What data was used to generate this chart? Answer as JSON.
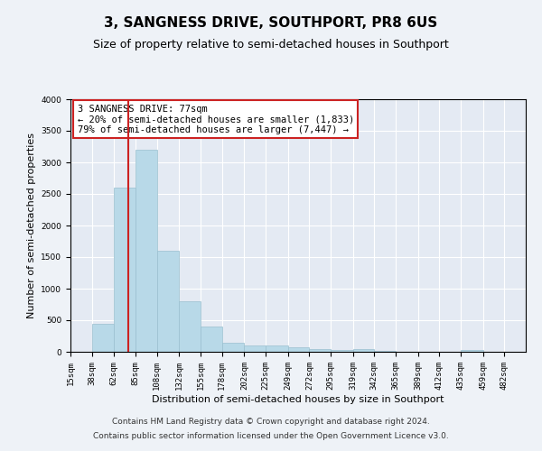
{
  "title": "3, SANGNESS DRIVE, SOUTHPORT, PR8 6US",
  "subtitle": "Size of property relative to semi-detached houses in Southport",
  "xlabel": "Distribution of semi-detached houses by size in Southport",
  "ylabel": "Number of semi-detached properties",
  "footer1": "Contains HM Land Registry data © Crown copyright and database right 2024.",
  "footer2": "Contains public sector information licensed under the Open Government Licence v3.0.",
  "annotation_title": "3 SANGNESS DRIVE: 77sqm",
  "annotation_line1": "← 20% of semi-detached houses are smaller (1,833)",
  "annotation_line2": "79% of semi-detached houses are larger (7,447) →",
  "property_sqm": 77,
  "bar_color": "#b8d9e8",
  "bar_edge_color": "#9abfcf",
  "highlight_color": "#cc2222",
  "annotation_box_color": "#cc2222",
  "categories": [
    "15sqm",
    "38sqm",
    "62sqm",
    "85sqm",
    "108sqm",
    "132sqm",
    "155sqm",
    "178sqm",
    "202sqm",
    "225sqm",
    "249sqm",
    "272sqm",
    "295sqm",
    "319sqm",
    "342sqm",
    "365sqm",
    "389sqm",
    "412sqm",
    "435sqm",
    "459sqm",
    "482sqm"
  ],
  "bin_edges": [
    15,
    38,
    62,
    85,
    108,
    132,
    155,
    178,
    202,
    225,
    249,
    272,
    295,
    319,
    342,
    365,
    389,
    412,
    435,
    459,
    482,
    505
  ],
  "values": [
    5,
    450,
    2600,
    3200,
    1600,
    800,
    400,
    150,
    100,
    100,
    75,
    50,
    30,
    50,
    20,
    5,
    5,
    5,
    30,
    5,
    5
  ],
  "ylim": [
    0,
    4000
  ],
  "yticks": [
    0,
    500,
    1000,
    1500,
    2000,
    2500,
    3000,
    3500,
    4000
  ],
  "background_color": "#eef2f7",
  "plot_background": "#e4eaf3",
  "grid_color": "#ffffff",
  "title_fontsize": 11,
  "subtitle_fontsize": 9,
  "axis_label_fontsize": 8,
  "tick_fontsize": 6.5,
  "footer_fontsize": 6.5,
  "annotation_fontsize": 7.5
}
